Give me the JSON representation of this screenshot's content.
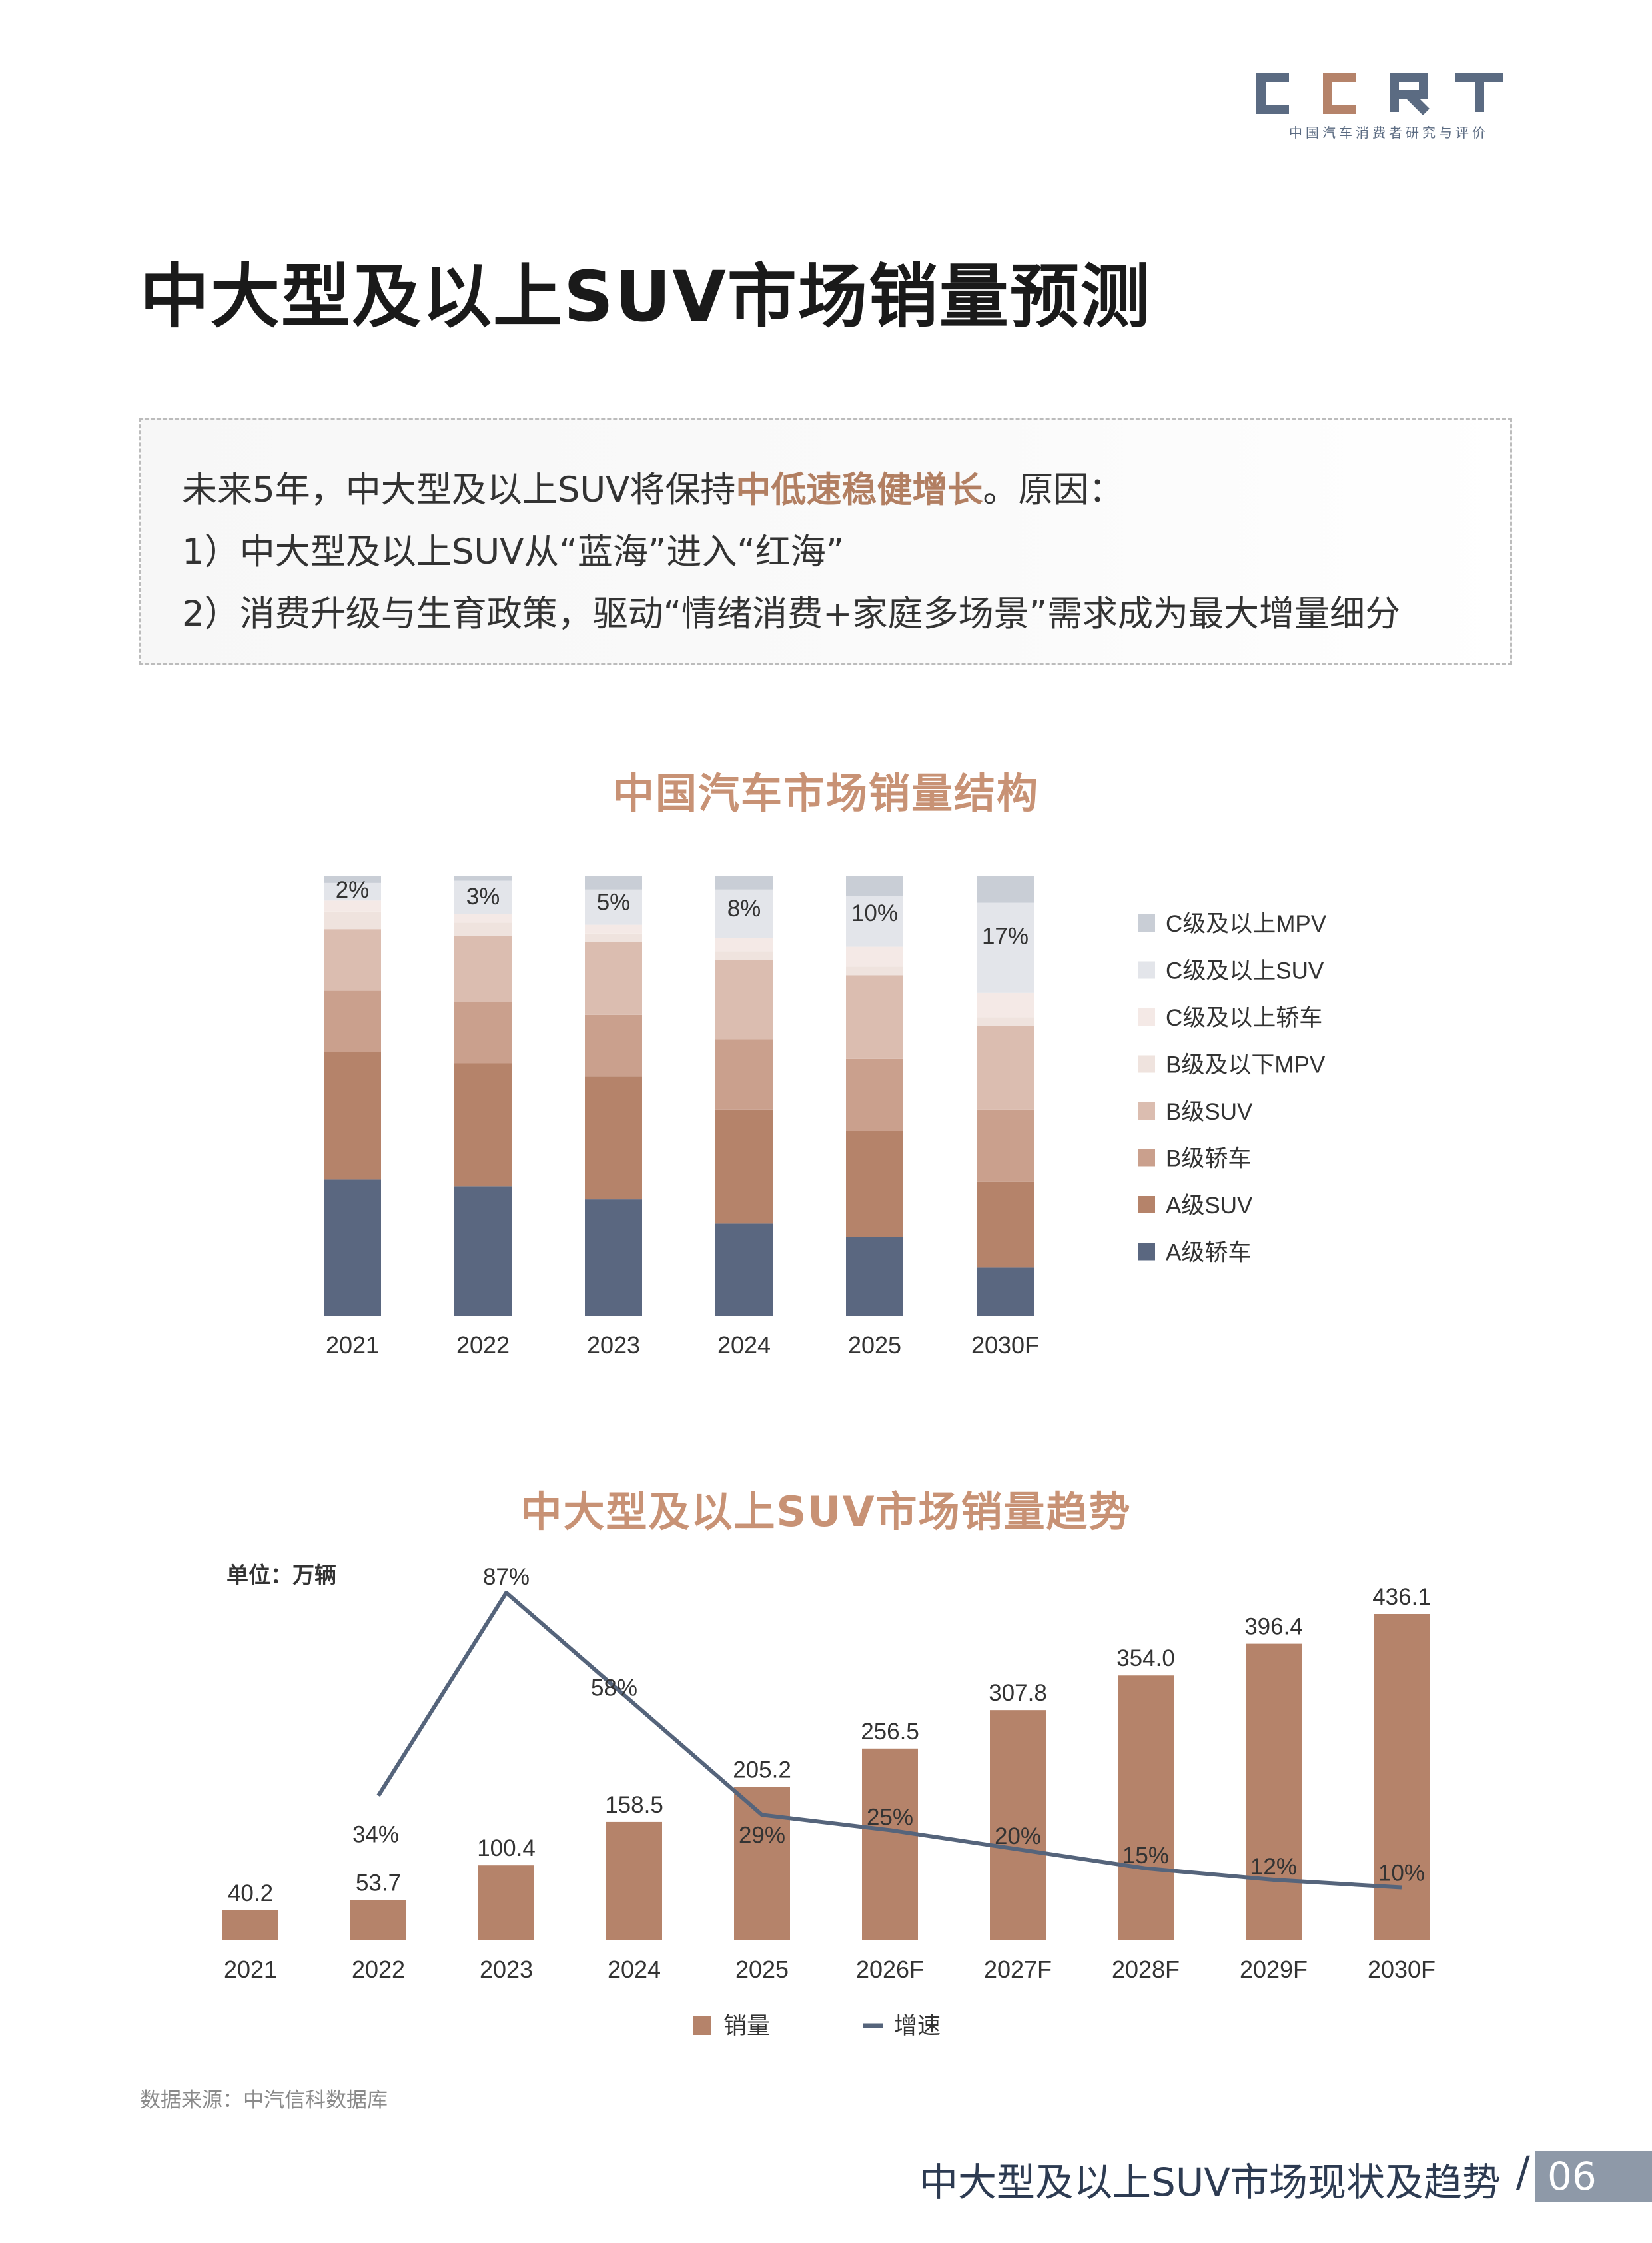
{
  "logo": {
    "text": "CCRT",
    "subtitle": "中国汽车消费者研究与评价"
  },
  "page_title": "中大型及以上SUV市场销量预测",
  "summary": {
    "line1_prefix": "未来5年，中大型及以上SUV将保持",
    "line1_highlight": "中低速稳健增长",
    "line1_suffix": "。原因：",
    "line2": "1）中大型及以上SUV从“蓝海”进入“红海”",
    "line3": "2）消费升级与生育政策，驱动“情绪消费+家庭多场景”需求成为最大增量细分"
  },
  "source": "数据来源：中汽信科数据库",
  "footer": {
    "title": "中大型及以上SUV市场现状及趋势",
    "slash": "/",
    "page": "06"
  },
  "colors": {
    "accent": "#c89275",
    "bar": "#b5836a",
    "line": "#55647b",
    "segments": [
      "#5a6780",
      "#b5836a",
      "#caa08d",
      "#dbbdb0",
      "#efe3de",
      "#f4e9e6",
      "#e3e5ea",
      "#c9ced6"
    ]
  },
  "chart_data": [
    {
      "type": "bar",
      "stacked": true,
      "normalized": true,
      "title": "中国汽车市场销量结构",
      "categories": [
        "2021",
        "2022",
        "2023",
        "2024",
        "2025",
        "2030F"
      ],
      "series": [
        {
          "name": "A级轿车",
          "values": [
            31,
            29.5,
            26.5,
            21,
            18,
            11
          ]
        },
        {
          "name": "A级SUV",
          "values": [
            29,
            28,
            28,
            26,
            24,
            19.5
          ]
        },
        {
          "name": "B级轿车",
          "values": [
            14,
            14,
            14,
            16,
            16.5,
            16.5
          ]
        },
        {
          "name": "B级SUV",
          "values": [
            14,
            15,
            16.5,
            18,
            19,
            19
          ]
        },
        {
          "name": "B级及以下MPV",
          "values": [
            4,
            3,
            2,
            2,
            2,
            2
          ]
        },
        {
          "name": "C级及以上轿车",
          "values": [
            2.5,
            2,
            2,
            3,
            4.5,
            5.5
          ]
        },
        {
          "name": "C级及以上SUV",
          "values": [
            4,
            7.5,
            8,
            11,
            11.5,
            20.5
          ]
        },
        {
          "name": "C级及以上MPV",
          "values": [
            1.5,
            1,
            3,
            3,
            4.5,
            6
          ]
        }
      ],
      "data_labels": [
        "2%",
        "3%",
        "5%",
        "8%",
        "10%",
        "17%"
      ],
      "legend": [
        "C级及以上MPV",
        "C级及以上SUV",
        "C级及以上轿车",
        "B级及以下MPV",
        "B级SUV",
        "B级轿车",
        "A级SUV",
        "A级轿车"
      ],
      "legend_position": "right",
      "grid": false
    },
    {
      "type": "bar",
      "combo": "bar+line",
      "title": "中大型及以上SUV市场销量趋势",
      "unit": "单位：万辆",
      "categories": [
        "2021",
        "2022",
        "2023",
        "2024",
        "2025",
        "2026F",
        "2027F",
        "2028F",
        "2029F",
        "2030F"
      ],
      "series": [
        {
          "name": "销量",
          "type": "bar",
          "values": [
            40.2,
            53.7,
            100.4,
            158.5,
            205.2,
            256.5,
            307.8,
            354.0,
            396.4,
            436.1
          ],
          "labels": [
            "40.2",
            "53.7",
            "100.4",
            "158.5",
            "205.2",
            "256.5",
            "307.8",
            "354.0",
            "396.4",
            "436.1"
          ]
        },
        {
          "name": "增速",
          "type": "line",
          "values": [
            null,
            34,
            87,
            58,
            29,
            25,
            20,
            15,
            12,
            10
          ],
          "labels": [
            "",
            "34%",
            "87%",
            "58%",
            "29%",
            "25%",
            "20%",
            "15%",
            "12%",
            "10%"
          ]
        }
      ],
      "legend": [
        "销量",
        "增速"
      ],
      "legend_position": "bottom",
      "grid": false
    }
  ]
}
